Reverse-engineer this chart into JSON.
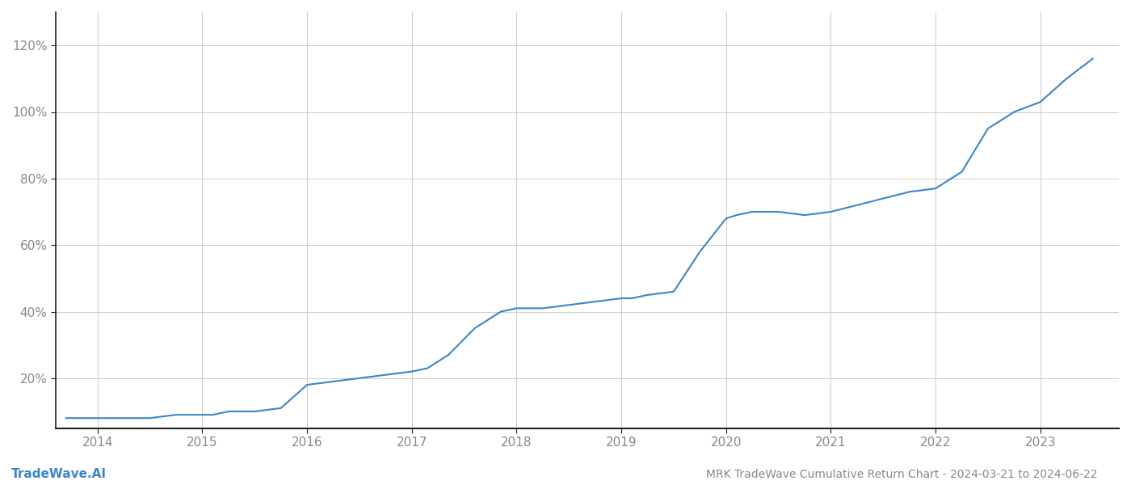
{
  "title": "MRK TradeWave Cumulative Return Chart - 2024-03-21 to 2024-06-22",
  "watermark": "TradeWave.AI",
  "line_color": "#3a86c8",
  "line_width": 1.5,
  "background_color": "#ffffff",
  "grid_color": "#cccccc",
  "x_years": [
    2014,
    2015,
    2016,
    2017,
    2018,
    2019,
    2020,
    2021,
    2022,
    2023
  ],
  "x_data": [
    2013.7,
    2013.85,
    2014.0,
    2014.25,
    2014.5,
    2014.75,
    2015.0,
    2015.1,
    2015.25,
    2015.5,
    2015.75,
    2016.0,
    2016.25,
    2016.5,
    2016.75,
    2017.0,
    2017.15,
    2017.35,
    2017.6,
    2017.85,
    2018.0,
    2018.25,
    2018.5,
    2018.75,
    2019.0,
    2019.1,
    2019.25,
    2019.5,
    2019.75,
    2020.0,
    2020.1,
    2020.25,
    2020.5,
    2020.75,
    2021.0,
    2021.25,
    2021.5,
    2021.75,
    2022.0,
    2022.25,
    2022.5,
    2022.75,
    2023.0,
    2023.25,
    2023.5
  ],
  "y_data": [
    8,
    8,
    8,
    8,
    8,
    9,
    9,
    9,
    10,
    10,
    11,
    18,
    19,
    20,
    21,
    22,
    23,
    27,
    35,
    40,
    41,
    41,
    42,
    43,
    44,
    44,
    45,
    46,
    58,
    68,
    69,
    70,
    70,
    69,
    70,
    72,
    74,
    76,
    77,
    82,
    95,
    100,
    103,
    110,
    116
  ],
  "ylim_min": 5,
  "ylim_max": 130,
  "yticks": [
    20,
    40,
    60,
    80,
    100,
    120
  ],
  "xlim_min": 2013.6,
  "xlim_max": 2023.75,
  "title_color": "#888888",
  "tick_color": "#888888",
  "left_spine_color": "#222222",
  "bottom_spine_color": "#222222",
  "title_fontsize": 10,
  "watermark_fontsize": 11,
  "tick_fontsize": 11
}
